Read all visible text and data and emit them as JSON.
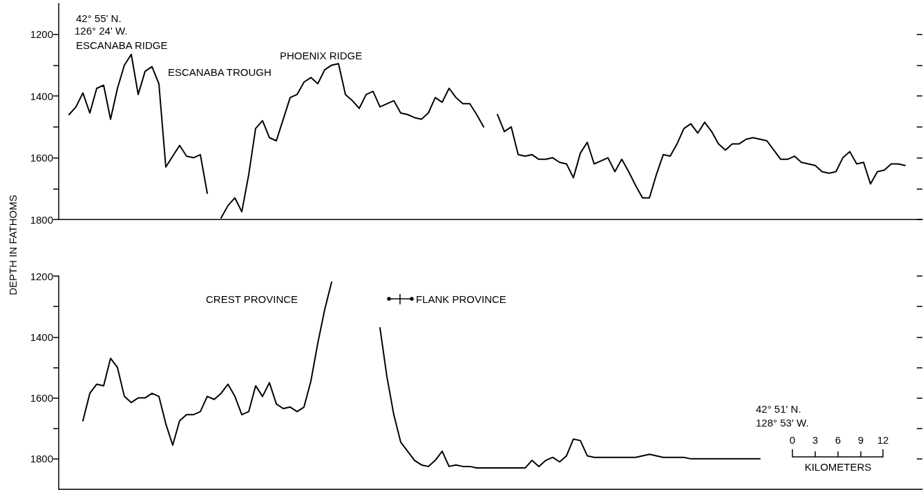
{
  "chart_data": [
    {
      "type": "line",
      "ylabel": "DEPTH IN FATHOMS",
      "categories": [
        null,
        null,
        null,
        null,
        null,
        null,
        null,
        null,
        null,
        null,
        null,
        null,
        null,
        null,
        null,
        null,
        null,
        null,
        null,
        null,
        null,
        null,
        null,
        null,
        null,
        null,
        null,
        null,
        null,
        null,
        null,
        null,
        null,
        null,
        null,
        null,
        null,
        null,
        null,
        null,
        null,
        null,
        null,
        null,
        null,
        null,
        null,
        null,
        null,
        null,
        null,
        null,
        null,
        null,
        null,
        null,
        null,
        null,
        null,
        null,
        null,
        null,
        null,
        null,
        null,
        null,
        null,
        null,
        null,
        null,
        null,
        null,
        null,
        null,
        null,
        null,
        null,
        null,
        null,
        null,
        null,
        null,
        null,
        null,
        null,
        null,
        null,
        null,
        null,
        null,
        null,
        null,
        null,
        null,
        null,
        null,
        null,
        null,
        null,
        null,
        null,
        null,
        null,
        null,
        null,
        null,
        null,
        null,
        null,
        null,
        null,
        null,
        null,
        null,
        null,
        null,
        null,
        null,
        null,
        null,
        null,
        null,
        null,
        null,
        null
      ],
      "series": [
        {
          "color": "#000000",
          "values": [
            null,
            1460,
            1435,
            1390,
            1455,
            1375,
            1365,
            1475,
            1375,
            1300,
            1265,
            1395,
            1320,
            1305,
            1360,
            1630,
            1595,
            1560,
            1595,
            1600,
            1590,
            1715,
            null,
            1795,
            1755,
            1730,
            1775,
            1655,
            1505,
            1480,
            1535,
            1545,
            1475,
            1405,
            1395,
            1355,
            1340,
            1360,
            1315,
            1300,
            1295,
            1395,
            1415,
            1440,
            1395,
            1385,
            1435,
            1425,
            1415,
            1455,
            1460,
            1470,
            1475,
            1455,
            1405,
            1420,
            1375,
            1405,
            1425,
            1425,
            1460,
            1500,
            null,
            1460,
            1515,
            1500,
            1590,
            1595,
            1590,
            1605,
            1605,
            1600,
            1615,
            1620,
            1665,
            1585,
            1550,
            1620,
            1610,
            1600,
            1645,
            1605,
            1645,
            1690,
            1730,
            1730,
            1655,
            1590,
            1595,
            1555,
            1505,
            1490,
            1520,
            1485,
            1515,
            1555,
            1575,
            1555,
            1555,
            1540,
            1535,
            1540,
            1545,
            1575,
            1605,
            1605,
            1595,
            1615,
            1620,
            1625,
            1645,
            1650,
            1645,
            1600,
            1580,
            1620,
            1615,
            1685,
            1645,
            1640,
            1620,
            1620,
            1625,
            null,
            null
          ]
        }
      ],
      "ylim": [
        1800,
        1100
      ],
      "yticks": [
        1200,
        {
          "value": 1300,
          "label": null
        },
        1400,
        {
          "value": 1500,
          "label": null
        },
        1600,
        {
          "value": 1700,
          "label": null
        },
        1800
      ],
      "tick_labels": "y",
      "marker": "none",
      "line_style": "solid",
      "annotations": [
        "42° 55' N.",
        "126° 24' W.",
        "ESCANABA RIDGE",
        "ESCANABA TROUGH",
        "PHOENIX RIDGE"
      ]
    },
    {
      "type": "line",
      "categories": [
        null,
        null,
        null,
        null,
        null,
        null,
        null,
        null,
        null,
        null,
        null,
        null,
        null,
        null,
        null,
        null,
        null,
        null,
        null,
        null,
        null,
        null,
        null,
        null,
        null,
        null,
        null,
        null,
        null,
        null,
        null,
        null,
        null,
        null,
        null,
        null,
        null,
        null,
        null,
        null,
        null,
        null,
        null,
        null,
        null,
        null,
        null,
        null,
        null,
        null,
        null,
        null,
        null,
        null,
        null,
        null,
        null,
        null,
        null,
        null,
        null,
        null,
        null,
        null,
        null,
        null,
        null,
        null,
        null,
        null,
        null,
        null,
        null,
        null,
        null,
        null,
        null,
        null,
        null,
        null,
        null,
        null,
        null,
        null,
        null,
        null,
        null,
        null,
        null,
        null,
        null,
        null,
        null,
        null,
        null,
        null,
        null,
        null,
        null,
        null,
        null,
        null,
        null,
        null,
        null,
        null,
        null,
        null,
        null,
        null,
        null,
        null,
        null,
        null,
        null,
        null,
        null,
        null,
        null,
        null,
        null,
        null,
        null,
        null,
        null
      ],
      "series": [
        {
          "color": "#000000",
          "values": [
            null,
            null,
            null,
            1675,
            1585,
            1555,
            1560,
            1470,
            1500,
            1595,
            1615,
            1600,
            1600,
            1585,
            1595,
            1685,
            1755,
            1675,
            1655,
            1655,
            1645,
            1595,
            1605,
            1585,
            1555,
            1595,
            1655,
            1645,
            1560,
            1595,
            1550,
            1620,
            1635,
            1630,
            1645,
            1630,
            1545,
            1420,
            1310,
            1220,
            null,
            null,
            null,
            null,
            null,
            null,
            1370,
            1530,
            1655,
            1745,
            1775,
            1805,
            1820,
            1825,
            1805,
            1775,
            1825,
            1820,
            1825,
            1825,
            1830,
            1830,
            1830,
            1830,
            1830,
            1830,
            1830,
            1830,
            1805,
            1825,
            1805,
            1795,
            1810,
            1790,
            1735,
            1740,
            1790,
            1795,
            1795,
            1795,
            1795,
            1795,
            1795,
            1795,
            1790,
            1785,
            1790,
            1795,
            1795,
            1795,
            1795,
            1800,
            1800,
            1800,
            1800,
            1800,
            1800,
            1800,
            1800,
            1800,
            1800,
            1800,
            null,
            null,
            null,
            null,
            null,
            null,
            null,
            null,
            null,
            null,
            null,
            null,
            null,
            null,
            null,
            null,
            null,
            null,
            null,
            null,
            null,
            null,
            null
          ]
        }
      ],
      "ylim": [
        1900,
        1200
      ],
      "yticks": [
        1200,
        {
          "value": 1300,
          "label": null
        },
        1400,
        {
          "value": 1500,
          "label": null
        },
        1600,
        {
          "value": 1700,
          "label": null
        },
        1800
      ],
      "tick_labels": "y",
      "marker": "none",
      "line_style": "solid",
      "annotations": [
        "CREST PROVINCE",
        "FLANK PROVINCE",
        "42° 51' N.",
        "128° 53' W.",
        "0",
        "3",
        "6",
        "9",
        "12",
        "KILOMETERS"
      ]
    }
  ]
}
